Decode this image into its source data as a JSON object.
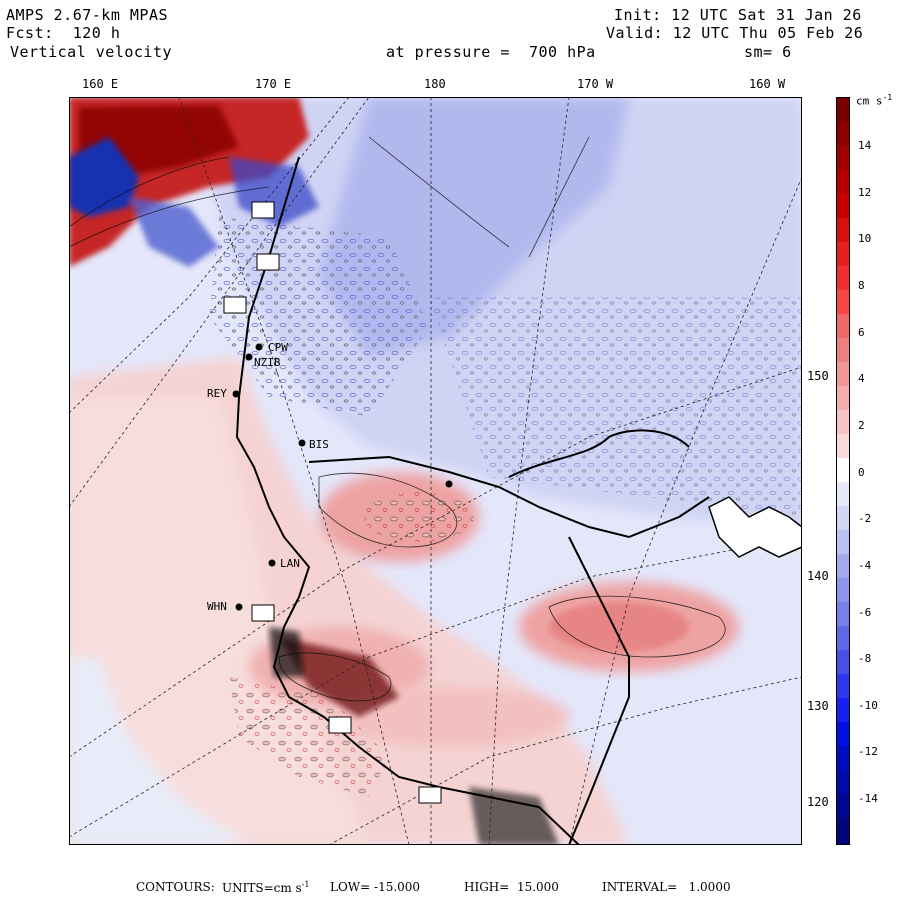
{
  "header": {
    "model": "AMPS 2.67-km MPAS",
    "forecast": "Fcst:  120 h",
    "field": "Vertical velocity",
    "init": "Init: 12 UTC Sat 31 Jan 26",
    "valid": "Valid: 12 UTC Thu 05 Feb 26",
    "pressure": "at pressure =  700 hPa",
    "smoothing": "sm= 6"
  },
  "map": {
    "longitude_labels": [
      "160 E",
      "170 E",
      "180",
      "170 W",
      "160 W"
    ],
    "latitude_labels": [
      "150 W",
      "140 W",
      "130 W",
      "120 W"
    ],
    "places": [
      "CPW",
      "NZIB",
      "REY",
      "BIS",
      "LAN",
      "WHN"
    ],
    "colors": {
      "positive_strong": "#8b0000",
      "positive_mid": "#e52a2a",
      "positive_weak": "#f6cccc",
      "negative_weak": "#dcdff7",
      "negative_mid": "#8a92e6",
      "negative_strong": "#001a8f",
      "land_shade": "#e8ecf8"
    }
  },
  "colorbar": {
    "unit": "cm s",
    "unit_exp": "-1",
    "ticks": [
      "14",
      "12",
      "10",
      "8",
      "6",
      "4",
      "2",
      "0",
      "-2",
      "-4",
      "-6",
      "-8",
      "-10",
      "-12",
      "-14"
    ]
  },
  "footer": {
    "contours_label": "CONTOURS:",
    "units_label": "UNITS=cm s",
    "units_exp": "-1",
    "low": "LOW= -15.000",
    "high": "HIGH=  15.000",
    "interval": "INTERVAL=   1.0000"
  }
}
